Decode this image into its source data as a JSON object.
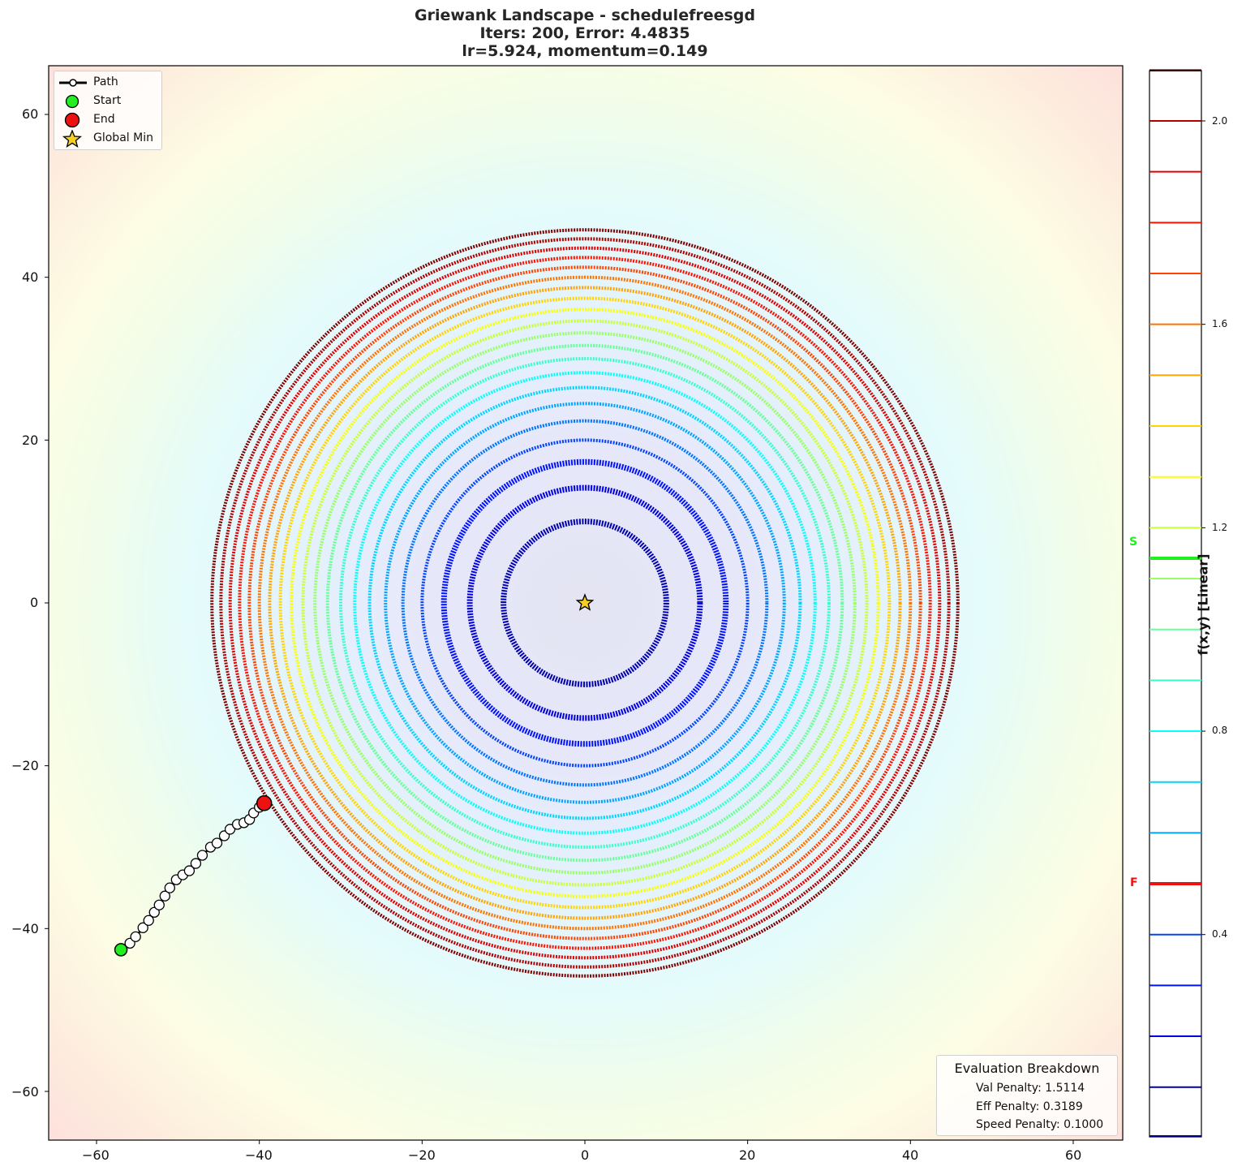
{
  "title": {
    "line1": "Griewank Landscape - schedulefreesgd",
    "line2": "Iters: 200, Error: 4.4835",
    "line3": "lr=5.924, momentum=0.149"
  },
  "legend": {
    "path": "Path",
    "start": "Start",
    "end": "End",
    "global_min": "Global Min"
  },
  "evaluation": {
    "heading": "Evaluation Breakdown",
    "val_penalty": "Val Penalty: 1.5114",
    "eff_penalty": "Eff Penalty: 0.3189",
    "speed_penalty": "Speed Penalty: 0.1000"
  },
  "axes": {
    "x_ticks": [
      "−60",
      "−40",
      "−20",
      "0",
      "20",
      "40",
      "60"
    ],
    "y_ticks": [
      "60",
      "40",
      "20",
      "0",
      "−20",
      "−40",
      "−60"
    ]
  },
  "colorbar": {
    "label": "f(x,y) [Linear]",
    "ticks": [
      "2.0",
      "1.6",
      "1.2",
      "0.8",
      "0.4"
    ],
    "start_marker": "S",
    "final_marker": "F"
  },
  "colors": {
    "start": "#22ee22",
    "end": "#ee1111",
    "star": "#f5d020",
    "path_fill": "#ffffff"
  },
  "chart_data": {
    "type": "contour",
    "title": "Griewank Landscape - schedulefreesgd\nIters: 200, Error: 4.4835\nlr=5.924, momentum=0.149",
    "xlabel": "",
    "ylabel": "",
    "xlim": [
      -66,
      66
    ],
    "ylim": [
      -66,
      66
    ],
    "x_ticks": [
      -60,
      -40,
      -20,
      0,
      20,
      40,
      60
    ],
    "y_ticks": [
      -60,
      -40,
      -20,
      0,
      20,
      40,
      60
    ],
    "colorbar": {
      "label": "f(x,y) [Linear]",
      "range": [
        0.0,
        2.1
      ],
      "ticks": [
        2.0,
        1.6,
        1.2,
        0.8,
        0.4
      ],
      "levels": [
        0.1,
        0.2,
        0.3,
        0.4,
        0.5,
        0.6,
        0.7,
        0.8,
        0.9,
        1.0,
        1.1,
        1.2,
        1.3,
        1.4,
        1.5,
        1.6,
        1.7,
        1.8,
        1.9,
        2.0,
        2.1
      ],
      "start_value": 1.14,
      "final_value": 0.5
    },
    "global_min": {
      "x": 0,
      "y": 0
    },
    "start": {
      "x": -57.0,
      "y": -42.6
    },
    "end": {
      "x": -39.4,
      "y": -24.6
    },
    "path": [
      [
        -57.0,
        -42.6
      ],
      [
        -55.9,
        -41.8
      ],
      [
        -55.2,
        -41.0
      ],
      [
        -54.3,
        -39.9
      ],
      [
        -53.6,
        -39.0
      ],
      [
        -52.9,
        -38.0
      ],
      [
        -52.3,
        -37.1
      ],
      [
        -51.6,
        -36.0
      ],
      [
        -51.0,
        -35.0
      ],
      [
        -50.2,
        -34.0
      ],
      [
        -49.4,
        -33.4
      ],
      [
        -48.6,
        -32.9
      ],
      [
        -47.8,
        -32.0
      ],
      [
        -47.0,
        -31.0
      ],
      [
        -46.0,
        -30.0
      ],
      [
        -45.2,
        -29.5
      ],
      [
        -44.3,
        -28.6
      ],
      [
        -43.6,
        -27.8
      ],
      [
        -42.7,
        -27.2
      ],
      [
        -41.9,
        -27.0
      ],
      [
        -41.2,
        -26.6
      ],
      [
        -40.7,
        -25.8
      ],
      [
        -40.0,
        -25.1
      ],
      [
        -39.4,
        -24.6
      ]
    ],
    "legend": [
      "Path",
      "Start",
      "End",
      "Global Min"
    ],
    "legend_position": "upper left",
    "annotation": {
      "title": "Evaluation Breakdown",
      "Val Penalty": 1.5114,
      "Eff Penalty": 0.3189,
      "Speed Penalty": 0.1
    },
    "grid": false
  }
}
